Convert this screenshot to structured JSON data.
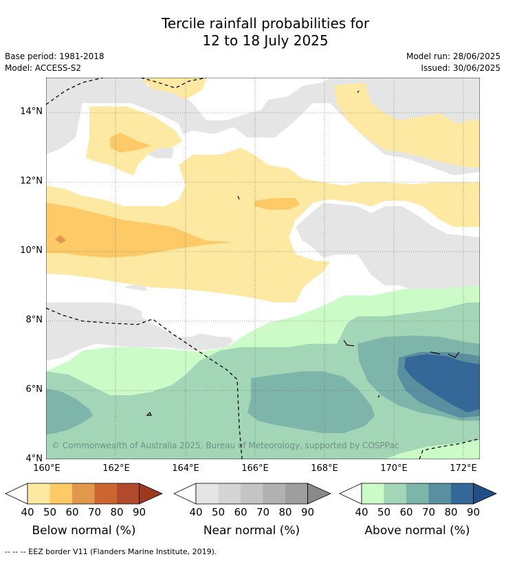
{
  "title": {
    "line1": "Tercile rainfall probabilities for",
    "line2": "12 to 18 July 2025"
  },
  "meta": {
    "base_period": "Base period: 1981-2018",
    "model": "Model: ACCESS-S2",
    "model_run": "Model run: 28/06/2025",
    "issued": "Issued: 30/06/2025"
  },
  "map": {
    "lat_labels": [
      "14°N",
      "12°N",
      "10°N",
      "8°N",
      "6°N",
      "4°N"
    ],
    "lon_labels": [
      "160°E",
      "162°E",
      "164°E",
      "166°E",
      "168°E",
      "170°E",
      "172°E"
    ],
    "copyright": "© Commonwealth of Australia 2025, Bureau of Meteorology, supported by COSPPac"
  },
  "legends": [
    {
      "title": "Below normal (%)",
      "ticks": [
        "40",
        "50",
        "60",
        "70",
        "80",
        "90"
      ],
      "colors": [
        "#fee9a3",
        "#fdca67",
        "#e1984a",
        "#cd6531",
        "#b14a2b",
        "#9d3a1e"
      ]
    },
    {
      "title": "Near normal (%)",
      "ticks": [
        "40",
        "50",
        "60",
        "70",
        "80",
        "90"
      ],
      "colors": [
        "#e5e5e5",
        "#d5d5d5",
        "#c4c4c4",
        "#b1b1b1",
        "#9e9e9e",
        "#898989"
      ]
    },
    {
      "title": "Above normal (%)",
      "ticks": [
        "40",
        "50",
        "60",
        "70",
        "80",
        "90"
      ],
      "colors": [
        "#cbfcc7",
        "#a3d6b7",
        "#7eb5aa",
        "#5a8f9f",
        "#336898",
        "#1f4f86"
      ]
    }
  ],
  "footnote": "--  --  -- EEZ border V11 (Flanders Marine Institute, 2019)."
}
